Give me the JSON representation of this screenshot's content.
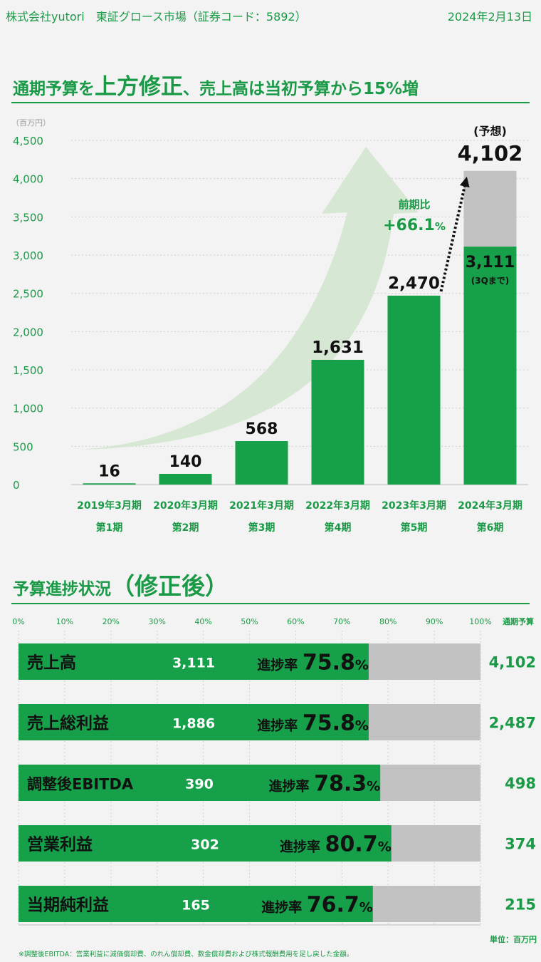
{
  "header": {
    "company": "株式会社yutori　東証グロース市場（証券コード：5892）",
    "date": "2024年2月13日"
  },
  "section1": {
    "title_a": "通期予算を",
    "title_b": "上方修正",
    "title_c": "、売上高は当初予算から15%増"
  },
  "colors": {
    "accent": "#1a9a46",
    "bar": "#16a049",
    "forecast": "#c2c2c2",
    "arrow": "#d3e6cf"
  },
  "chart_data": [
    {
      "type": "bar",
      "unit_label": "（百万円）",
      "ylim": [
        0,
        4500
      ],
      "yticks": [
        "0",
        "500",
        "1,000",
        "1,500",
        "2,000",
        "2,500",
        "3,000",
        "3,500",
        "4,000",
        "4,500"
      ],
      "grid": true,
      "categories": [
        {
          "year": "2019年3月期",
          "period": "第1期"
        },
        {
          "year": "2020年3月期",
          "period": "第2期"
        },
        {
          "year": "2021年3月期",
          "period": "第3期"
        },
        {
          "year": "2022年3月期",
          "period": "第4期"
        },
        {
          "year": "2023年3月期",
          "period": "第5期"
        },
        {
          "year": "2024年3月期",
          "period": "第6期"
        }
      ],
      "series": [
        {
          "values": [
            16,
            140,
            568,
            1631,
            2470,
            3111
          ],
          "labels": [
            "16",
            "140",
            "568",
            "1,631",
            "2,470",
            "3,111"
          ]
        },
        {
          "values": [
            null,
            null,
            null,
            null,
            null,
            4102
          ]
        }
      ],
      "forecast_label": "(予想)",
      "forecast_value_label": "4,102",
      "q3_note": "(3Qまで)",
      "yoy_label": "前期比",
      "yoy_value": "+66.1",
      "yoy_unit": "%"
    },
    {
      "type": "bar",
      "orientation": "horizontal",
      "title_a": "予算進捗状況",
      "title_b": "（修正後）",
      "xlim": [
        0,
        100
      ],
      "xticks": [
        "0%",
        "10%",
        "20%",
        "30%",
        "40%",
        "50%",
        "60%",
        "70%",
        "80%",
        "90%",
        "100%"
      ],
      "budget_header": "通期予算",
      "progress_prefix": "進捗率",
      "percent_sign": "%",
      "unit_note": "単位：百万円",
      "footnote": "※調整後EBITDA：営業利益に減価償却費、のれん償却費、数金償却費および株式報酬費用を足し戻した金額。",
      "rows": [
        {
          "name": "売上高",
          "actual": "3,111",
          "progress": 75.8,
          "progress_label": "75.8",
          "budget": "4,102"
        },
        {
          "name": "売上総利益",
          "actual": "1,886",
          "progress": 75.8,
          "progress_label": "75.8",
          "budget": "2,487"
        },
        {
          "name": "調整後EBITDA",
          "actual": "390",
          "progress": 78.3,
          "progress_label": "78.3",
          "budget": "498"
        },
        {
          "name": "営業利益",
          "actual": "302",
          "progress": 80.7,
          "progress_label": "80.7",
          "budget": "374"
        },
        {
          "name": "当期純利益",
          "actual": "165",
          "progress": 76.7,
          "progress_label": "76.7",
          "budget": "215"
        }
      ]
    }
  ]
}
